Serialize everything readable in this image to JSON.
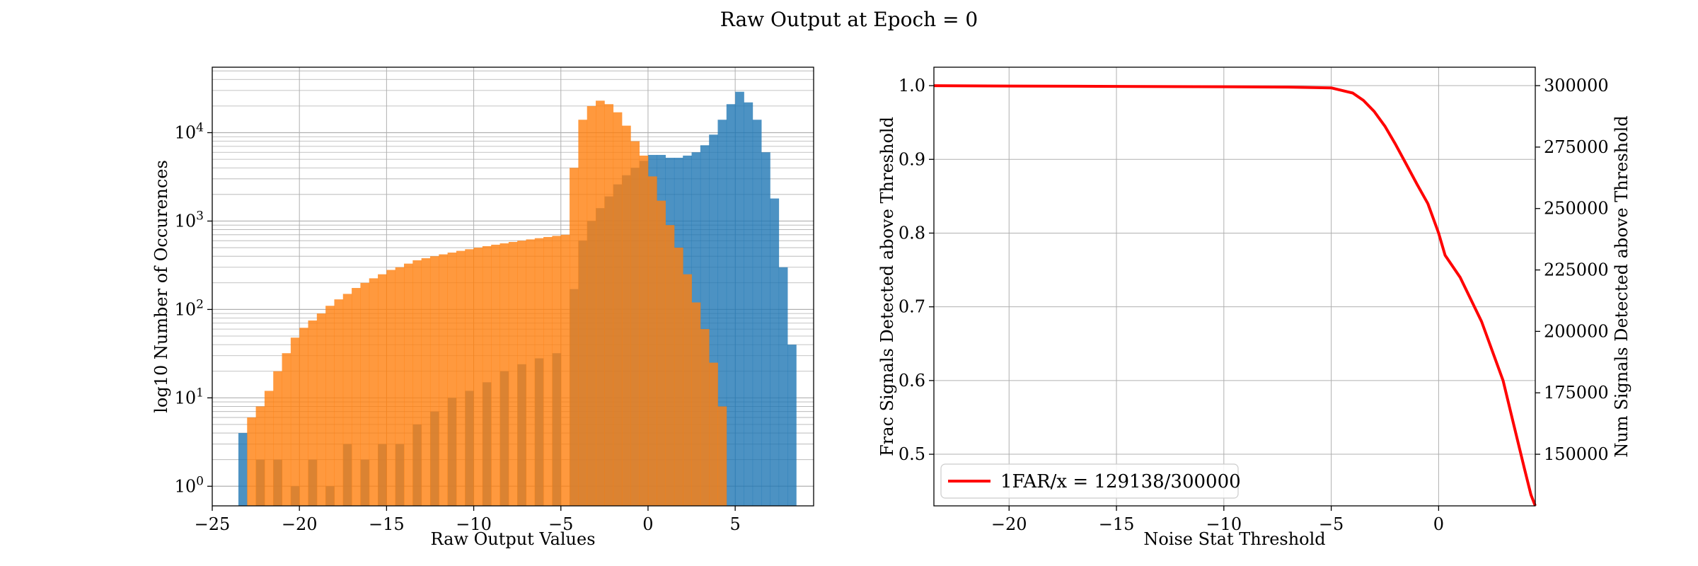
{
  "figure": {
    "title": "Raw Output at Epoch = 0"
  },
  "colors": {
    "blue": "#1f77b4",
    "orange": "#ff7f0e",
    "red": "#ff0000",
    "grid": "#b0b0b0"
  },
  "chart_data": [
    {
      "type": "histogram",
      "title": "",
      "xlabel": "Raw Output Values",
      "ylabel": "log10 Number of Occurences",
      "xlim": [
        -25,
        9.5
      ],
      "ylim": [
        0.6,
        55000
      ],
      "yscale": "log",
      "grid": true,
      "x_ticks": [
        -25,
        -20,
        -15,
        -10,
        -5,
        0,
        5
      ],
      "x_tick_labels": [
        "−25",
        "−20",
        "−15",
        "−10",
        "−5",
        "0",
        "5"
      ],
      "y_ticks": [
        1,
        10,
        100,
        1000,
        10000
      ],
      "y_tick_mant": [
        "10",
        "10",
        "10",
        "10",
        "10"
      ],
      "y_tick_exp": [
        "0",
        "1",
        "2",
        "3",
        "4"
      ],
      "series": [
        {
          "color": "blue",
          "alpha": 0.8,
          "bins": [
            [
              -23.5,
              4
            ],
            [
              -22.5,
              2
            ],
            [
              -21.5,
              2
            ],
            [
              -20.5,
              1
            ],
            [
              -19.5,
              2
            ],
            [
              -18.5,
              1
            ],
            [
              -17.5,
              3
            ],
            [
              -16.5,
              2
            ],
            [
              -15.5,
              3
            ],
            [
              -14.5,
              3
            ],
            [
              -13.5,
              5
            ],
            [
              -12.5,
              7
            ],
            [
              -11.5,
              10
            ],
            [
              -10.5,
              12
            ],
            [
              -9.5,
              15
            ],
            [
              -8.5,
              20
            ],
            [
              -7.5,
              24
            ],
            [
              -6.5,
              28
            ],
            [
              -5.5,
              32
            ],
            [
              -4.5,
              170
            ],
            [
              -4.0,
              600
            ],
            [
              -3.5,
              1000
            ],
            [
              -3.0,
              1400
            ],
            [
              -2.5,
              1900
            ],
            [
              -2.0,
              2600
            ],
            [
              -1.5,
              3300
            ],
            [
              -1.0,
              4000
            ],
            [
              -0.5,
              4800
            ],
            [
              0.0,
              5600
            ],
            [
              0.5,
              5600
            ],
            [
              1.0,
              5200
            ],
            [
              1.5,
              5200
            ],
            [
              2.0,
              5500
            ],
            [
              2.5,
              6000
            ],
            [
              3.0,
              7200
            ],
            [
              3.5,
              9500
            ],
            [
              4.0,
              14000
            ],
            [
              4.5,
              21000
            ],
            [
              5.0,
              29000
            ],
            [
              5.5,
              22000
            ],
            [
              6.0,
              14000
            ],
            [
              6.5,
              6000
            ],
            [
              7.0,
              1800
            ],
            [
              7.5,
              300
            ],
            [
              8.0,
              40
            ]
          ]
        },
        {
          "color": "orange",
          "alpha": 0.8,
          "bins": [
            [
              -23.5,
              0.6
            ],
            [
              -23.0,
              6
            ],
            [
              -22.5,
              8
            ],
            [
              -22.0,
              12
            ],
            [
              -21.5,
              20
            ],
            [
              -21.0,
              32
            ],
            [
              -20.5,
              48
            ],
            [
              -20.0,
              62
            ],
            [
              -19.5,
              75
            ],
            [
              -19.0,
              90
            ],
            [
              -18.5,
              110
            ],
            [
              -18.0,
              130
            ],
            [
              -17.5,
              150
            ],
            [
              -17.0,
              175
            ],
            [
              -16.5,
              200
            ],
            [
              -16.0,
              225
            ],
            [
              -15.5,
              250
            ],
            [
              -15.0,
              280
            ],
            [
              -14.5,
              300
            ],
            [
              -14.0,
              330
            ],
            [
              -13.5,
              360
            ],
            [
              -13.0,
              380
            ],
            [
              -12.5,
              400
            ],
            [
              -12.0,
              420
            ],
            [
              -11.5,
              440
            ],
            [
              -11.0,
              460
            ],
            [
              -10.5,
              480
            ],
            [
              -10.0,
              500
            ],
            [
              -9.5,
              520
            ],
            [
              -9.0,
              540
            ],
            [
              -8.5,
              560
            ],
            [
              -8.0,
              580
            ],
            [
              -7.5,
              600
            ],
            [
              -7.0,
              620
            ],
            [
              -6.5,
              640
            ],
            [
              -6.0,
              660
            ],
            [
              -5.5,
              680
            ],
            [
              -5.0,
              700
            ],
            [
              -4.5,
              4000
            ],
            [
              -4.0,
              14000
            ],
            [
              -3.5,
              20000
            ],
            [
              -3.0,
              23000
            ],
            [
              -2.5,
              21000
            ],
            [
              -2.0,
              17000
            ],
            [
              -1.5,
              12000
            ],
            [
              -1.0,
              8000
            ],
            [
              -0.5,
              5500
            ],
            [
              0.0,
              3200
            ],
            [
              0.5,
              1700
            ],
            [
              1.0,
              900
            ],
            [
              1.5,
              500
            ],
            [
              2.0,
              250
            ],
            [
              2.5,
              120
            ],
            [
              3.0,
              60
            ],
            [
              3.5,
              25
            ],
            [
              4.0,
              8
            ],
            [
              4.5,
              0.6
            ]
          ]
        }
      ]
    },
    {
      "type": "line",
      "title": "",
      "xlabel": "Noise Stat Threshold",
      "ylabel": "Frac Signals Detected above Threshold",
      "y2label": "Num Signals Detected above Threshold",
      "xlim": [
        -23.5,
        4.5
      ],
      "ylim": [
        0.43,
        1.025
      ],
      "y2lim": [
        129000,
        307500
      ],
      "grid": true,
      "x_ticks": [
        -20,
        -15,
        -10,
        -5,
        0
      ],
      "x_tick_labels": [
        "−20",
        "−15",
        "−10",
        "−5",
        "0"
      ],
      "y_ticks": [
        0.5,
        0.6,
        0.7,
        0.8,
        0.9,
        1.0
      ],
      "y_tick_labels": [
        "0.5",
        "0.6",
        "0.7",
        "0.8",
        "0.9",
        "1.0"
      ],
      "y2_ticks": [
        150000,
        175000,
        200000,
        225000,
        250000,
        275000,
        300000
      ],
      "y2_tick_labels": [
        "150000",
        "175000",
        "200000",
        "225000",
        "250000",
        "275000",
        "300000"
      ],
      "legend": {
        "label": "1FAR/x = 129138/300000",
        "position": "lower-left"
      },
      "series": [
        {
          "name": "1FAR/x = 129138/300000",
          "color": "red",
          "x": [
            -23.5,
            -20,
            -15,
            -10,
            -7,
            -5,
            -4,
            -3.5,
            -3,
            -2.5,
            -2,
            -1.5,
            -1,
            -0.5,
            0,
            0.3,
            1,
            2,
            3,
            3.5,
            4,
            4.3,
            4.5
          ],
          "y": [
            1.0,
            0.9995,
            0.999,
            0.9985,
            0.998,
            0.997,
            0.99,
            0.98,
            0.965,
            0.945,
            0.92,
            0.893,
            0.866,
            0.84,
            0.8,
            0.77,
            0.74,
            0.68,
            0.6,
            0.54,
            0.48,
            0.445,
            0.43
          ]
        }
      ]
    }
  ]
}
